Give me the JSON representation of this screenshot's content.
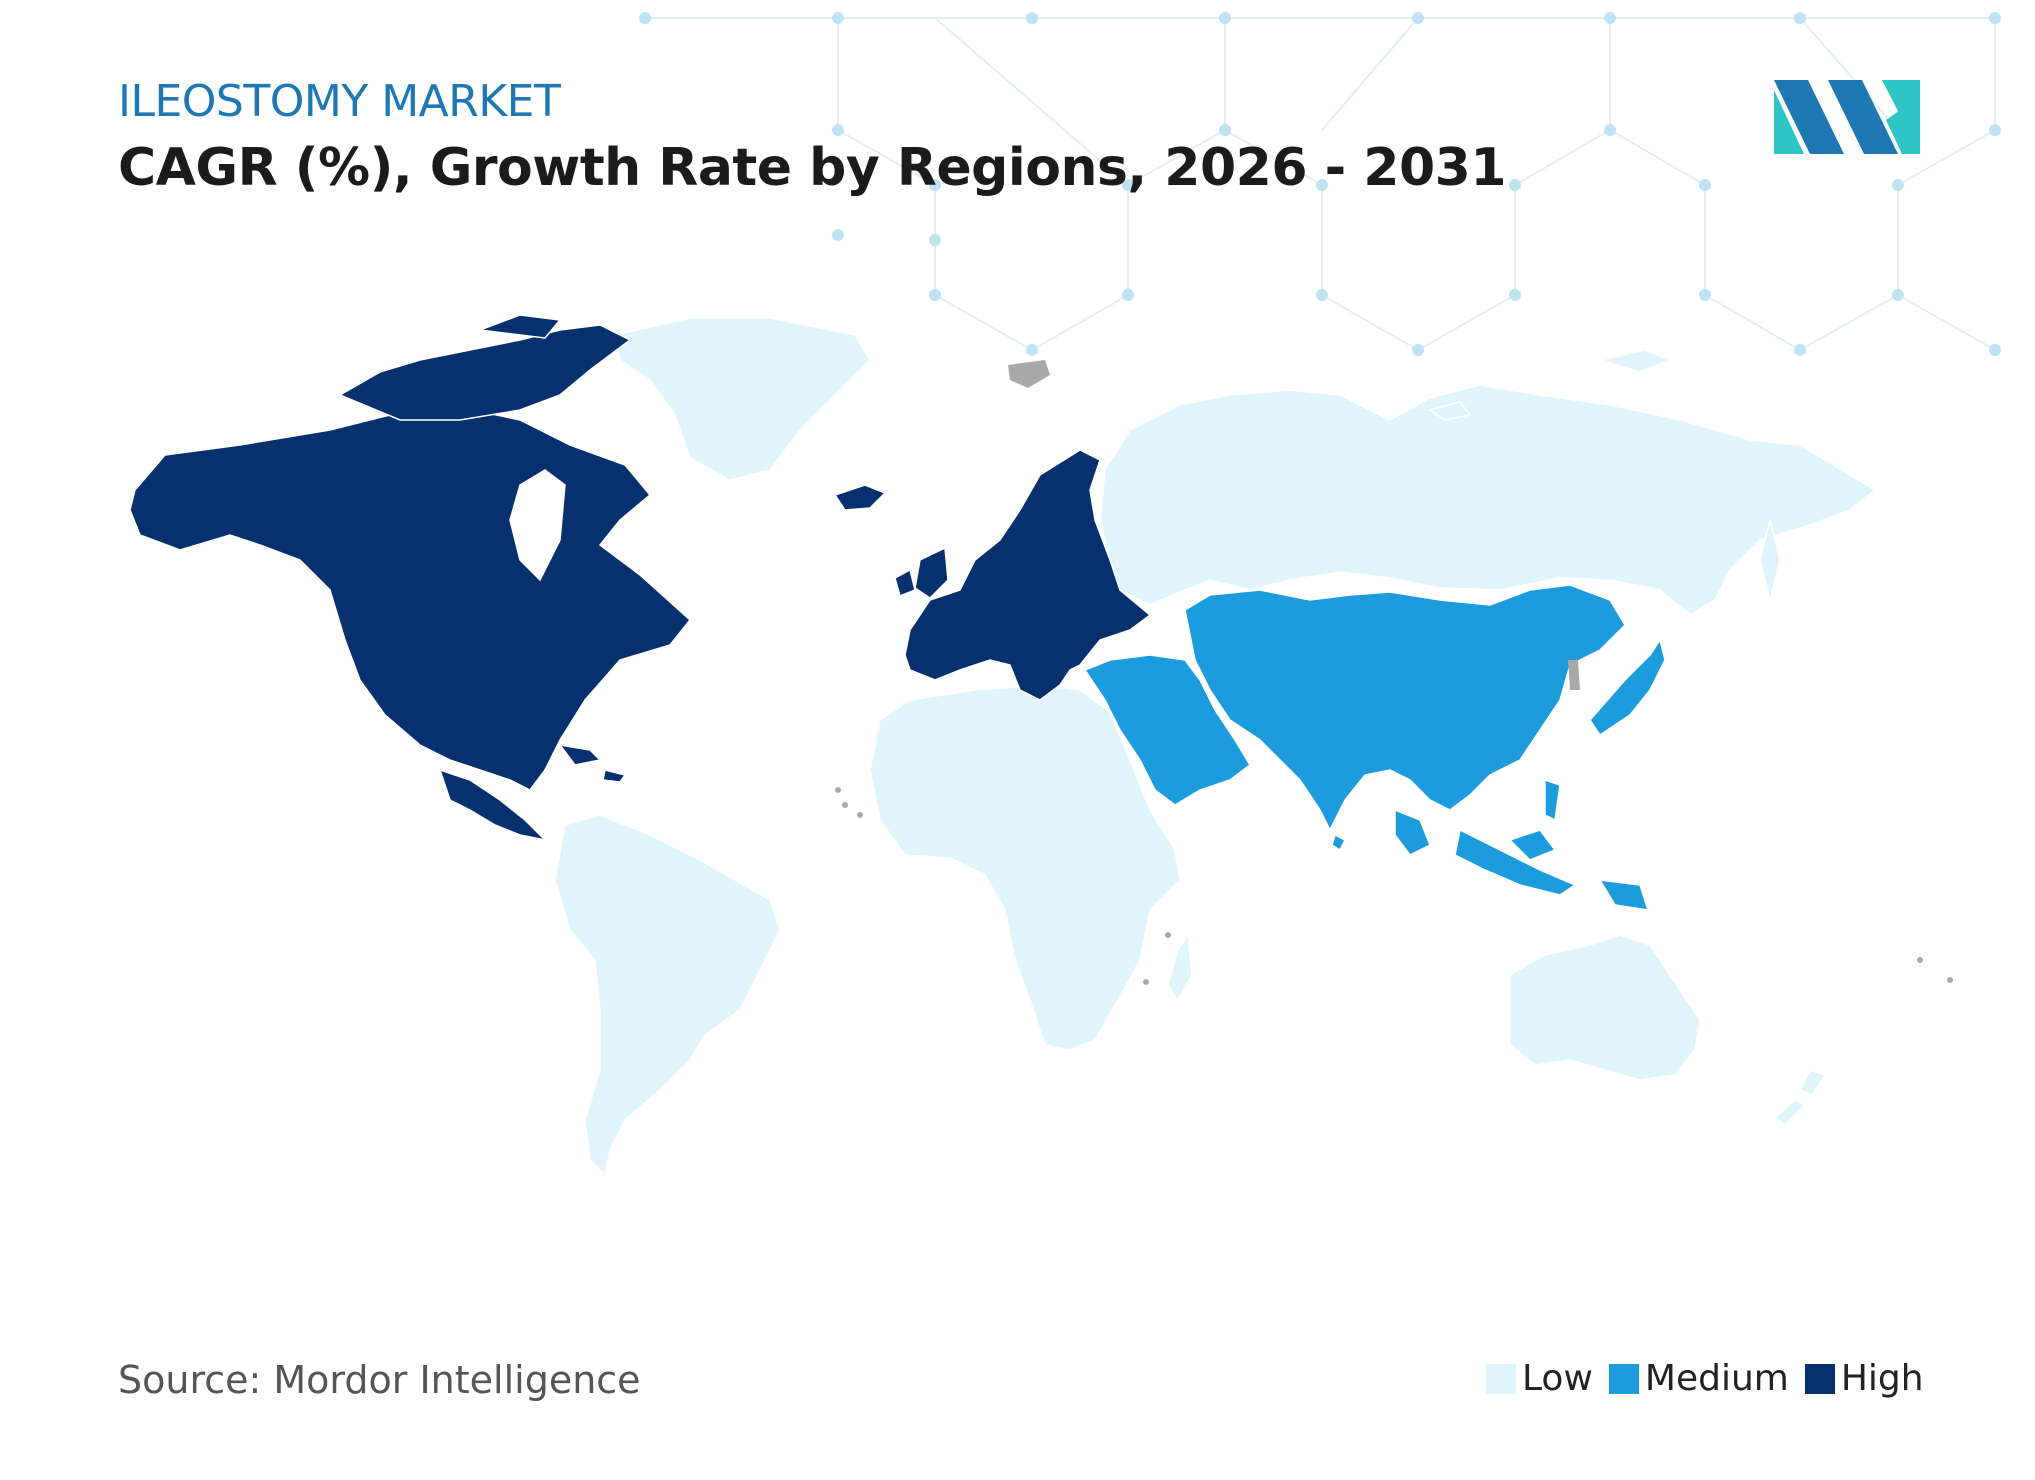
{
  "header": {
    "kicker": "ILEOSTOMY MARKET",
    "title": "CAGR (%), Growth Rate by Regions, 2026 - 2031"
  },
  "footer": {
    "source": "Source: Mordor Intelligence"
  },
  "colors": {
    "low": "#dff4fb",
    "medium": "#1d9cdd",
    "high": "#06306e",
    "no_data": "#a9a9a9",
    "kicker": "#1f78b4",
    "logo_dark": "#1f78b4",
    "logo_light": "#2ec4c6"
  },
  "legend": [
    {
      "level": "low",
      "label": "Low"
    },
    {
      "level": "medium",
      "label": "Medium"
    },
    {
      "level": "high",
      "label": "High"
    }
  ],
  "regions": [
    {
      "name": "North America",
      "level": "high"
    },
    {
      "name": "Europe",
      "level": "high"
    },
    {
      "name": "Asia-Pacific",
      "level": "medium"
    },
    {
      "name": "Middle East",
      "level": "medium"
    },
    {
      "name": "South America",
      "level": "low"
    },
    {
      "name": "Africa",
      "level": "low"
    },
    {
      "name": "Russia",
      "level": "low"
    },
    {
      "name": "Greenland",
      "level": "low"
    },
    {
      "name": "Oceania",
      "level": "low"
    }
  ]
}
